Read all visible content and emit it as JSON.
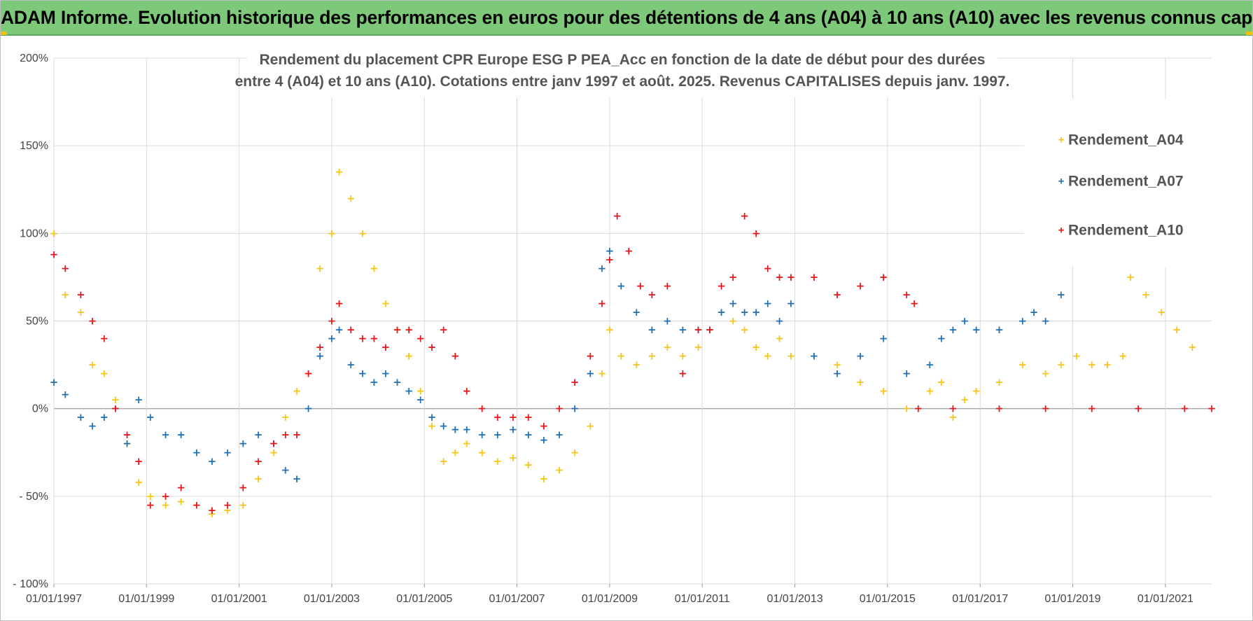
{
  "header": {
    "title": "ADAM Informe. Evolution historique des performances en euros pour des détentions de 4 ans (A04) à 10 ans (A10) avec les revenus connus capitalisés"
  },
  "colors": {
    "header_bg": "#7ec87a",
    "accent": "#f2c200"
  },
  "chart_data": {
    "type": "scatter",
    "title_lines": [
      "Rendement du placement CPR Europe ESG P PEA_Acc en fonction de la date de début pour des durées",
      "entre 4 (A04) et 10 ans (A10).  Cotations entre janv 1997 et août. 2025. Revenus CAPITALISES depuis janv. 1997."
    ],
    "xlabel": "",
    "ylabel": "",
    "x_range": [
      "1997-01-01",
      "2022-01-01"
    ],
    "x_ticks": [
      "01/01/1997",
      "01/01/1999",
      "01/01/2001",
      "01/01/2003",
      "01/01/2005",
      "01/01/2007",
      "01/01/2009",
      "01/01/2011",
      "01/01/2013",
      "01/01/2015",
      "01/01/2017",
      "01/01/2019",
      "01/01/2021"
    ],
    "ylim": [
      -100,
      200
    ],
    "y_ticks": [
      {
        "value": 200,
        "label": "200%"
      },
      {
        "value": 150,
        "label": "150%"
      },
      {
        "value": 100,
        "label": "100%"
      },
      {
        "value": 50,
        "label": "50%"
      },
      {
        "value": 0,
        "label": "0%"
      },
      {
        "value": -50,
        "label": "- 50%"
      },
      {
        "value": -100,
        "label": "- 100%"
      }
    ],
    "grid": true,
    "legend_position": "top-right",
    "series": [
      {
        "name": "Rendement_A04",
        "color": "#f5c518",
        "points": [
          [
            "1997-01-01",
            100
          ],
          [
            "1997-04-01",
            65
          ],
          [
            "1997-08-01",
            55
          ],
          [
            "1997-11-01",
            25
          ],
          [
            "1998-02-01",
            20
          ],
          [
            "1998-05-01",
            5
          ],
          [
            "1998-08-01",
            -20
          ],
          [
            "1998-11-01",
            -42
          ],
          [
            "1999-02-01",
            -50
          ],
          [
            "1999-06-01",
            -55
          ],
          [
            "1999-10-01",
            -53
          ],
          [
            "2000-02-01",
            -55
          ],
          [
            "2000-06-01",
            -60
          ],
          [
            "2000-10-01",
            -58
          ],
          [
            "2001-02-01",
            -55
          ],
          [
            "2001-06-01",
            -40
          ],
          [
            "2001-10-01",
            -25
          ],
          [
            "2002-01-01",
            -5
          ],
          [
            "2002-04-01",
            10
          ],
          [
            "2002-07-01",
            20
          ],
          [
            "2002-10-01",
            80
          ],
          [
            "2003-01-01",
            100
          ],
          [
            "2003-03-01",
            135
          ],
          [
            "2003-06-01",
            120
          ],
          [
            "2003-09-01",
            100
          ],
          [
            "2003-12-01",
            80
          ],
          [
            "2004-03-01",
            60
          ],
          [
            "2004-06-01",
            45
          ],
          [
            "2004-09-01",
            30
          ],
          [
            "2004-12-01",
            10
          ],
          [
            "2005-03-01",
            -10
          ],
          [
            "2005-06-01",
            -30
          ],
          [
            "2005-09-01",
            -25
          ],
          [
            "2005-12-01",
            -20
          ],
          [
            "2006-04-01",
            -25
          ],
          [
            "2006-08-01",
            -30
          ],
          [
            "2006-12-01",
            -28
          ],
          [
            "2007-04-01",
            -32
          ],
          [
            "2007-08-01",
            -40
          ],
          [
            "2007-12-01",
            -35
          ],
          [
            "2008-04-01",
            -25
          ],
          [
            "2008-08-01",
            -10
          ],
          [
            "2008-11-01",
            20
          ],
          [
            "2009-01-01",
            45
          ],
          [
            "2009-04-01",
            30
          ],
          [
            "2009-08-01",
            25
          ],
          [
            "2009-12-01",
            30
          ],
          [
            "2010-04-01",
            35
          ],
          [
            "2010-08-01",
            30
          ],
          [
            "2010-12-01",
            35
          ],
          [
            "2011-03-01",
            45
          ],
          [
            "2011-06-01",
            55
          ],
          [
            "2011-09-01",
            50
          ],
          [
            "2011-12-01",
            45
          ],
          [
            "2012-03-01",
            35
          ],
          [
            "2012-06-01",
            30
          ],
          [
            "2012-09-01",
            40
          ],
          [
            "2012-12-01",
            30
          ],
          [
            "2013-06-01",
            30
          ],
          [
            "2013-12-01",
            25
          ],
          [
            "2014-06-01",
            15
          ],
          [
            "2014-12-01",
            10
          ],
          [
            "2015-06-01",
            0
          ],
          [
            "2015-12-01",
            10
          ],
          [
            "2016-03-01",
            15
          ],
          [
            "2016-06-01",
            -5
          ],
          [
            "2016-09-01",
            5
          ],
          [
            "2016-12-01",
            10
          ],
          [
            "2017-06-01",
            15
          ],
          [
            "2017-12-01",
            25
          ],
          [
            "2018-06-01",
            20
          ],
          [
            "2018-10-01",
            25
          ],
          [
            "2019-02-01",
            30
          ],
          [
            "2019-06-01",
            25
          ],
          [
            "2019-10-01",
            25
          ],
          [
            "2020-02-01",
            30
          ],
          [
            "2020-04-01",
            75
          ],
          [
            "2020-08-01",
            65
          ],
          [
            "2020-12-01",
            55
          ],
          [
            "2021-04-01",
            45
          ],
          [
            "2021-08-01",
            35
          ]
        ]
      },
      {
        "name": "Rendement_A07",
        "color": "#1f6fb4",
        "points": [
          [
            "1997-01-01",
            15
          ],
          [
            "1997-04-01",
            8
          ],
          [
            "1997-08-01",
            -5
          ],
          [
            "1997-11-01",
            -10
          ],
          [
            "1998-02-01",
            -5
          ],
          [
            "1998-05-01",
            0
          ],
          [
            "1998-08-01",
            -20
          ],
          [
            "1998-11-01",
            5
          ],
          [
            "1999-02-01",
            -5
          ],
          [
            "1999-06-01",
            -15
          ],
          [
            "1999-10-01",
            -15
          ],
          [
            "2000-02-01",
            -25
          ],
          [
            "2000-06-01",
            -30
          ],
          [
            "2000-10-01",
            -25
          ],
          [
            "2001-02-01",
            -20
          ],
          [
            "2001-06-01",
            -15
          ],
          [
            "2001-10-01",
            -20
          ],
          [
            "2002-01-01",
            -35
          ],
          [
            "2002-04-01",
            -40
          ],
          [
            "2002-07-01",
            0
          ],
          [
            "2002-10-01",
            30
          ],
          [
            "2003-01-01",
            40
          ],
          [
            "2003-03-01",
            45
          ],
          [
            "2003-06-01",
            25
          ],
          [
            "2003-09-01",
            20
          ],
          [
            "2003-12-01",
            15
          ],
          [
            "2004-03-01",
            20
          ],
          [
            "2004-06-01",
            15
          ],
          [
            "2004-09-01",
            10
          ],
          [
            "2004-12-01",
            5
          ],
          [
            "2005-03-01",
            -5
          ],
          [
            "2005-06-01",
            -10
          ],
          [
            "2005-09-01",
            -12
          ],
          [
            "2005-12-01",
            -12
          ],
          [
            "2006-04-01",
            -15
          ],
          [
            "2006-08-01",
            -15
          ],
          [
            "2006-12-01",
            -12
          ],
          [
            "2007-04-01",
            -15
          ],
          [
            "2007-08-01",
            -18
          ],
          [
            "2007-12-01",
            -15
          ],
          [
            "2008-04-01",
            0
          ],
          [
            "2008-08-01",
            20
          ],
          [
            "2008-11-01",
            80
          ],
          [
            "2009-01-01",
            90
          ],
          [
            "2009-04-01",
            70
          ],
          [
            "2009-08-01",
            55
          ],
          [
            "2009-12-01",
            45
          ],
          [
            "2010-04-01",
            50
          ],
          [
            "2010-08-01",
            45
          ],
          [
            "2010-12-01",
            45
          ],
          [
            "2011-03-01",
            45
          ],
          [
            "2011-06-01",
            55
          ],
          [
            "2011-09-01",
            60
          ],
          [
            "2011-12-01",
            55
          ],
          [
            "2012-03-01",
            55
          ],
          [
            "2012-06-01",
            60
          ],
          [
            "2012-09-01",
            50
          ],
          [
            "2012-12-01",
            60
          ],
          [
            "2013-06-01",
            30
          ],
          [
            "2013-12-01",
            20
          ],
          [
            "2014-06-01",
            30
          ],
          [
            "2014-12-01",
            40
          ],
          [
            "2015-06-01",
            20
          ],
          [
            "2015-12-01",
            25
          ],
          [
            "2016-03-01",
            40
          ],
          [
            "2016-06-01",
            45
          ],
          [
            "2016-09-01",
            50
          ],
          [
            "2016-12-01",
            45
          ],
          [
            "2017-06-01",
            45
          ],
          [
            "2017-12-01",
            50
          ],
          [
            "2018-03-01",
            55
          ],
          [
            "2018-06-01",
            50
          ],
          [
            "2018-10-01",
            65
          ]
        ]
      },
      {
        "name": "Rendement_A10",
        "color": "#e8141a",
        "points": [
          [
            "1997-01-01",
            88
          ],
          [
            "1997-04-01",
            80
          ],
          [
            "1997-08-01",
            65
          ],
          [
            "1997-11-01",
            50
          ],
          [
            "1998-02-01",
            40
          ],
          [
            "1998-05-01",
            0
          ],
          [
            "1998-08-01",
            -15
          ],
          [
            "1998-11-01",
            -30
          ],
          [
            "1999-02-01",
            -55
          ],
          [
            "1999-06-01",
            -50
          ],
          [
            "1999-10-01",
            -45
          ],
          [
            "2000-02-01",
            -55
          ],
          [
            "2000-06-01",
            -58
          ],
          [
            "2000-10-01",
            -55
          ],
          [
            "2001-02-01",
            -45
          ],
          [
            "2001-06-01",
            -30
          ],
          [
            "2001-10-01",
            -20
          ],
          [
            "2002-01-01",
            -15
          ],
          [
            "2002-04-01",
            -15
          ],
          [
            "2002-07-01",
            20
          ],
          [
            "2002-10-01",
            35
          ],
          [
            "2003-01-01",
            50
          ],
          [
            "2003-03-01",
            60
          ],
          [
            "2003-06-01",
            45
          ],
          [
            "2003-09-01",
            40
          ],
          [
            "2003-12-01",
            40
          ],
          [
            "2004-03-01",
            35
          ],
          [
            "2004-06-01",
            45
          ],
          [
            "2004-09-01",
            45
          ],
          [
            "2004-12-01",
            40
          ],
          [
            "2005-03-01",
            35
          ],
          [
            "2005-06-01",
            45
          ],
          [
            "2005-09-01",
            30
          ],
          [
            "2005-12-01",
            10
          ],
          [
            "2006-04-01",
            0
          ],
          [
            "2006-08-01",
            -5
          ],
          [
            "2006-12-01",
            -5
          ],
          [
            "2007-04-01",
            -5
          ],
          [
            "2007-08-01",
            -10
          ],
          [
            "2007-12-01",
            0
          ],
          [
            "2008-04-01",
            15
          ],
          [
            "2008-08-01",
            30
          ],
          [
            "2008-11-01",
            60
          ],
          [
            "2009-01-01",
            85
          ],
          [
            "2009-03-01",
            110
          ],
          [
            "2009-06-01",
            90
          ],
          [
            "2009-09-01",
            70
          ],
          [
            "2009-12-01",
            65
          ],
          [
            "2010-04-01",
            70
          ],
          [
            "2010-08-01",
            20
          ],
          [
            "2010-12-01",
            45
          ],
          [
            "2011-03-01",
            45
          ],
          [
            "2011-06-01",
            70
          ],
          [
            "2011-09-01",
            75
          ],
          [
            "2011-12-01",
            110
          ],
          [
            "2012-03-01",
            100
          ],
          [
            "2012-06-01",
            80
          ],
          [
            "2012-09-01",
            75
          ],
          [
            "2012-12-01",
            75
          ],
          [
            "2013-06-01",
            75
          ],
          [
            "2013-12-01",
            65
          ],
          [
            "2014-06-01",
            70
          ],
          [
            "2014-12-01",
            75
          ],
          [
            "2015-06-01",
            65
          ],
          [
            "2015-08-01",
            60
          ],
          [
            "2015-09-01",
            0
          ],
          [
            "2016-06-01",
            0
          ],
          [
            "2017-06-01",
            0
          ],
          [
            "2018-06-01",
            0
          ],
          [
            "2019-06-01",
            0
          ],
          [
            "2020-06-01",
            0
          ],
          [
            "2021-06-01",
            0
          ],
          [
            "2022-01-01",
            0
          ]
        ]
      }
    ]
  }
}
